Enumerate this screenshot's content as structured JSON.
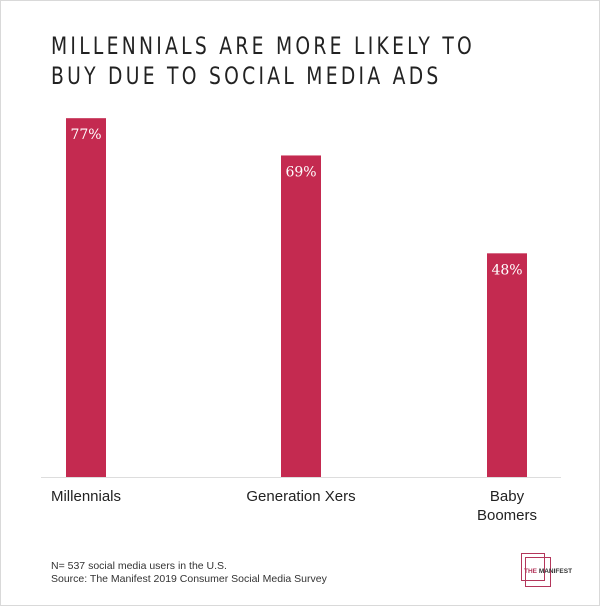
{
  "chart_data": {
    "type": "bar",
    "title_lines": [
      "MILLENNIALS ARE MORE LIKELY TO",
      "BUY DUE TO SOCIAL MEDIA ADS"
    ],
    "categories": [
      "Millennials",
      "Generation Xers",
      "Baby Boomers"
    ],
    "category_lines": [
      [
        "Millennials"
      ],
      [
        "Generation Xers"
      ],
      [
        "Baby",
        "Boomers"
      ]
    ],
    "values": [
      77,
      69,
      48
    ],
    "data_labels": [
      "77%",
      "69%",
      "48%"
    ],
    "ylim": [
      0,
      100
    ],
    "xlabel": "",
    "ylabel": "",
    "grid": false,
    "bar_color": "#c42a50"
  },
  "footnotes": {
    "sample": "N= 537 social media users in the U.S.",
    "source": "Source: The Manifest 2019 Consumer Social Media Survey"
  },
  "logo": {
    "the": "THE",
    "name": "MANIFEST"
  }
}
